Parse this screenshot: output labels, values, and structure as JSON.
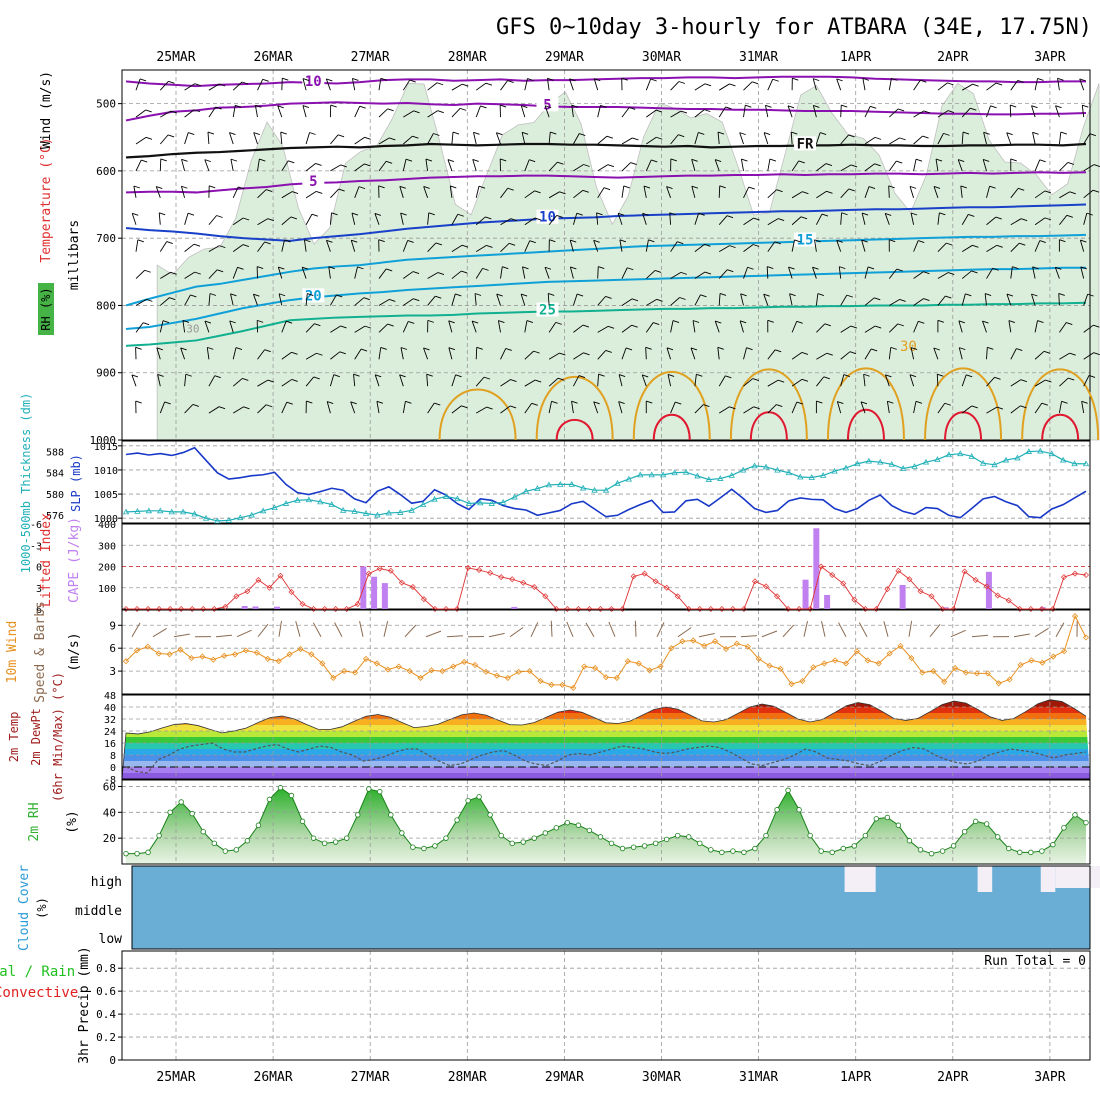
{
  "title": "GFS 0~10day 3-hourly for ATBARA (34E, 17.75N)",
  "dates": [
    "25MAR",
    "26MAR",
    "27MAR",
    "28MAR",
    "29MAR",
    "30MAR",
    "31MAR",
    "1APR",
    "2APR",
    "3APR"
  ],
  "colors": {
    "grid": "#9a9a9a",
    "contour_purple": "#8a10b0",
    "contour_blue": "#1840c8",
    "contour_lightblue": "#10a0d8",
    "contour_teal": "#10b090",
    "contour_orange": "#e0a020",
    "contour_red": "#e01830",
    "rh_fill": "#d8ecd8",
    "slp_line": "#1838c8",
    "thickness_line": "#20b0b8",
    "lifted_index": "#e03030",
    "cape_bar": "#c080f0",
    "wind_speed": "#e89020",
    "wind_barb": "#8a6a50",
    "rh_green": "#30b030",
    "cloud_blue": "#6aaed6",
    "precip_green": "#20c020",
    "precip_red": "#e02020"
  },
  "chart_data": [
    {
      "panel": "upper_air",
      "type": "contour",
      "ylabel_parts": [
        "RH (%)",
        "Temperature (°C)",
        "Wind (m/s)"
      ],
      "ylabel_units": "millibars",
      "yticks": [
        "500",
        "600",
        "700",
        "800",
        "900",
        "1000"
      ],
      "ylim": [
        1000,
        450
      ],
      "temperature_contours": [
        {
          "value": 10,
          "label": "10",
          "color": "#8a10b0",
          "p": [
            467,
            470,
            472,
            474,
            472,
            471,
            470,
            468,
            469,
            470,
            468,
            465,
            464,
            464,
            466,
            465,
            464,
            466,
            465,
            465,
            464,
            463,
            462,
            462,
            461,
            461,
            462,
            461,
            460,
            460,
            460,
            461,
            463,
            464,
            465,
            466,
            467,
            467,
            468,
            468,
            467,
            467
          ]
        },
        {
          "value": 5,
          "label": "5",
          "color": "#8a10b0",
          "p": [
            525,
            518,
            512,
            510,
            506,
            505,
            503,
            500,
            499,
            498,
            499,
            500,
            499,
            501,
            502,
            500,
            501,
            502,
            504,
            505,
            505,
            505,
            506,
            507,
            508,
            508,
            509,
            509,
            510,
            511,
            511,
            511,
            512,
            513,
            514,
            515,
            515,
            516,
            516,
            515,
            515,
            514
          ]
        },
        {
          "value": 0,
          "label": "FR",
          "color": "#111111",
          "p": [
            580,
            578,
            575,
            573,
            572,
            570,
            568,
            566,
            565,
            564,
            565,
            563,
            562,
            560,
            561,
            562,
            561,
            560,
            560,
            561,
            561,
            562,
            563,
            564,
            563,
            565,
            564,
            563,
            563,
            562,
            562,
            561,
            562,
            562,
            563,
            563,
            562,
            562,
            561,
            561,
            562,
            560
          ]
        },
        {
          "value": 5,
          "label": "5",
          "color": "#8a10b0",
          "p": [
            632,
            631,
            631,
            632,
            629,
            626,
            624,
            620,
            618,
            617,
            615,
            614,
            612,
            610,
            609,
            608,
            608,
            607,
            607,
            608,
            609,
            610,
            609,
            608,
            607,
            607,
            606,
            606,
            605,
            606,
            605,
            605,
            604,
            604,
            605,
            604,
            603,
            604,
            603,
            602,
            603,
            602
          ]
        },
        {
          "value": 10,
          "label": "10",
          "color": "#1840c8",
          "p": [
            685,
            688,
            690,
            693,
            697,
            700,
            702,
            704,
            700,
            697,
            694,
            690,
            686,
            683,
            680,
            677,
            675,
            673,
            671,
            670,
            669,
            667,
            666,
            665,
            664,
            663,
            662,
            661,
            660,
            660,
            659,
            658,
            657,
            657,
            656,
            655,
            654,
            654,
            653,
            652,
            651,
            650
          ]
        },
        {
          "value": 15,
          "label": "15",
          "color": "#10a0d8",
          "p": [
            800,
            790,
            781,
            772,
            768,
            762,
            756,
            750,
            745,
            742,
            740,
            736,
            732,
            730,
            728,
            726,
            724,
            722,
            720,
            718,
            716,
            714,
            712,
            711,
            710,
            709,
            708,
            707,
            706,
            705,
            704,
            703,
            702,
            701,
            700,
            699,
            698,
            698,
            697,
            697,
            696,
            695
          ]
        },
        {
          "value": 20,
          "label": "20",
          "color": "#10a0d8",
          "p": [
            835,
            832,
            826,
            820,
            812,
            804,
            798,
            792,
            788,
            785,
            782,
            780,
            777,
            775,
            773,
            771,
            769,
            767,
            765,
            764,
            763,
            762,
            761,
            760,
            759,
            758,
            757,
            756,
            755,
            754,
            753,
            752,
            751,
            750,
            749,
            748,
            747,
            746,
            746,
            745,
            744,
            744
          ]
        },
        {
          "value": 25,
          "label": "25",
          "color": "#10b090",
          "p": [
            860,
            858,
            855,
            852,
            845,
            838,
            830,
            822,
            820,
            818,
            817,
            816,
            815,
            815,
            814,
            812,
            811,
            810,
            809,
            809,
            808,
            807,
            806,
            805,
            805,
            804,
            804,
            803,
            802,
            802,
            801,
            801,
            800,
            800,
            800,
            799,
            799,
            798,
            798,
            797,
            797,
            796
          ]
        }
      ],
      "diurnal_contours": [
        {
          "value": 30,
          "label": "30",
          "color": "#e0a020",
          "peaks_day": [
            3.6,
            4.6,
            5.6,
            6.6,
            7.6,
            8.6,
            9.6
          ],
          "top_hPa": [
            900,
            875,
            865,
            860,
            858,
            858,
            860
          ]
        },
        {
          "value": 35,
          "label": "",
          "color": "#e01830",
          "peaks_day": [
            4.6,
            5.6,
            6.6,
            7.6,
            8.6,
            9.6
          ],
          "top_hPa": [
            960,
            950,
            945,
            940,
            945,
            950
          ]
        }
      ],
      "rh_contour_label": "30",
      "rh_moist_band": {
        "from_day": 0.3,
        "to_day": 10.0,
        "top_hPa": 560,
        "bottom_hPa": 1000
      }
    },
    {
      "panel": "slp_thickness",
      "type": "line",
      "ylabel_left": "1000-500mb Thickness (dm)",
      "ylabel_right": "SLP (mb)",
      "thickness_ticks": [
        "576",
        "580",
        "584",
        "588"
      ],
      "slp_ticks": [
        "1000",
        "1005",
        "1010",
        "1015"
      ],
      "slp_ylim": [
        999,
        1016
      ],
      "slp": [
        1013.2,
        1013.5,
        1013.1,
        1013.4,
        1013.0,
        1013.6,
        1014.6,
        1012.0,
        1009.4,
        1008.1,
        1008.4,
        1008.8,
        1009.0,
        1009.5,
        1007.0,
        1005.3,
        1004.9,
        1005.5,
        1006.2,
        1005.8,
        1004.0,
        1003.2,
        1005.6,
        1006.5,
        1004.9,
        1003.1,
        1003.5,
        1005.9,
        1004.8,
        1003.0,
        1001.8,
        1004.0,
        1003.7,
        1002.6,
        1002.0,
        1001.7,
        1000.6,
        1001.1,
        1001.6,
        1003.0,
        1003.5,
        1001.9,
        1000.3,
        1000.6,
        1001.8,
        1002.8,
        1003.7,
        1001.2,
        1001.3,
        1003.6,
        1003.9,
        1002.5,
        1004.2,
        1006.0,
        1004.1,
        1002.0,
        1001.2,
        1001.6,
        1003.6,
        1004.2,
        1003.9,
        1003.8,
        1002.0,
        1001.2,
        1002.0,
        1003.7,
        1004.8,
        1002.6,
        1001.4,
        1000.8,
        1002.2,
        1002.0,
        1000.6,
        1000.1,
        1002.0,
        1004.0,
        1004.5,
        1003.4,
        1002.6,
        1000.3,
        1000.1,
        1001.9,
        1002.8,
        1004.2,
        1005.6
      ],
      "thickness_ylim": [
        574.5,
        590.0
      ],
      "thickness": [
        576.6,
        576.7,
        576.8,
        576.8,
        576.6,
        576.6,
        576.2,
        575.4,
        574.9,
        575.0,
        575.5,
        576.0,
        576.8,
        577.4,
        578.2,
        578.8,
        578.9,
        578.5,
        578.0,
        576.9,
        576.7,
        576.3,
        576.0,
        576.4,
        576.5,
        576.9,
        578.0,
        579.0,
        579.5,
        579.1,
        578.2,
        578.3,
        578.2,
        578.4,
        579.4,
        580.5,
        581.0,
        581.7,
        581.8,
        581.8,
        581.1,
        580.7,
        580.7,
        582.0,
        582.8,
        583.6,
        583.6,
        583.6,
        584.0,
        584.1,
        583.4,
        582.7,
        582.9,
        583.5,
        584.5,
        585.3,
        585.1,
        584.5,
        584.0,
        583.2,
        583.1,
        583.5,
        584.3,
        584.9,
        585.7,
        586.2,
        586.0,
        585.6,
        584.8,
        585.2,
        586.0,
        586.5,
        587.4,
        587.6,
        587.1,
        585.8,
        585.5,
        586.4,
        586.8,
        588.0,
        588.1,
        587.6,
        586.4,
        585.7,
        585.7
      ]
    },
    {
      "panel": "stability",
      "type": "bar",
      "ylabel_left": "Lifted Index",
      "ylabel_right": "CAPE (J/kg)",
      "li_ticks": [
        "-6",
        "-3",
        "0",
        "3",
        "6"
      ],
      "cape_ticks": [
        "100",
        "200",
        "300",
        "400"
      ],
      "cape_ylim": [
        0,
        400
      ],
      "li_ylim": [
        6,
        -6
      ],
      "cape_values": [
        0,
        0,
        0,
        0,
        0,
        0,
        0,
        0,
        0,
        0,
        0,
        14,
        12,
        0,
        11,
        0,
        0,
        0,
        0,
        0,
        0,
        0,
        200,
        152,
        122,
        0,
        0,
        0,
        0,
        0,
        0,
        0,
        0,
        0,
        0,
        0,
        10,
        0,
        0,
        0,
        0,
        0,
        0,
        0,
        0,
        4,
        0,
        0,
        0,
        0,
        0,
        0,
        0,
        0,
        0,
        0,
        0,
        0,
        0,
        0,
        0,
        0,
        0,
        138,
        380,
        66,
        0,
        0,
        0,
        0,
        0,
        0,
        113,
        0,
        0,
        0,
        8,
        0,
        0,
        0,
        175,
        0,
        0,
        0,
        0,
        8,
        0,
        0,
        0,
        0
      ],
      "li_values": [
        6,
        6,
        6,
        6,
        6,
        6,
        6,
        6,
        6,
        5.7,
        4.2,
        3.5,
        1.9,
        3.0,
        1.3,
        3.6,
        5.3,
        6,
        6,
        6,
        6,
        5.3,
        1.0,
        0.3,
        0.6,
        2.3,
        2.9,
        4.6,
        6,
        6,
        6,
        0.2,
        0.5,
        0.9,
        1.5,
        1.8,
        2.3,
        2.9,
        4.2,
        6,
        6,
        6,
        6,
        6,
        6,
        6,
        1.4,
        1.0,
        2.1,
        3.0,
        4.2,
        6,
        6,
        6,
        6,
        6,
        6,
        2.1,
        2.8,
        4.2,
        6,
        6,
        6,
        0,
        1.2,
        2.4,
        4.7,
        6,
        6,
        3.2,
        0.6,
        1.8,
        3.5,
        4.2,
        6,
        6,
        0.7,
        1.9,
        2.8,
        4.1,
        4.8,
        6,
        6,
        6,
        6,
        1.5,
        1.0,
        1.2
      ]
    },
    {
      "panel": "wind10m",
      "type": "line",
      "ylabel_left": "10m Wind",
      "ylabel_mid": "Speed & Barbs",
      "ylabel_units": "(m/s)",
      "yticks": [
        "3",
        "6",
        "9"
      ],
      "ylim": [
        0,
        11
      ],
      "speed": [
        4.3,
        5.7,
        6.2,
        5.3,
        5.2,
        5.8,
        4.7,
        4.9,
        4.5,
        5.0,
        5.2,
        5.7,
        5.4,
        4.6,
        4.3,
        5.2,
        5.9,
        5.2,
        4.0,
        2.1,
        3.0,
        2.8,
        4.6,
        4.0,
        3.2,
        3.6,
        3.0,
        2.1,
        3.1,
        3.0,
        3.6,
        4.2,
        3.8,
        2.9,
        2.4,
        2.1,
        2.9,
        3.0,
        1.7,
        1.2,
        1.2,
        0.8,
        3.6,
        3.4,
        2.2,
        2.1,
        4.3,
        4.0,
        3.1,
        3.6,
        6.0,
        6.9,
        7.0,
        6.3,
        6.9,
        5.9,
        6.6,
        6.2,
        4.6,
        3.7,
        3.3,
        1.3,
        1.7,
        3.5,
        4.0,
        4.4,
        4.0,
        5.6,
        4.4,
        4.0,
        5.3,
        6.3,
        4.7,
        2.8,
        3.0,
        1.6,
        3.4,
        2.8,
        2.7,
        2.7,
        1.4,
        1.9,
        3.8,
        4.4,
        4.1,
        4.9,
        5.6,
        10.2,
        7.4
      ]
    },
    {
      "panel": "temperature2m",
      "type": "area",
      "ylabel": [
        "2m Temp",
        "2m DewPt",
        "(6hr Min/Max) (°C)"
      ],
      "yticks": [
        "-8",
        "0",
        "8",
        "16",
        "24",
        "32",
        "40",
        "48"
      ],
      "ylim": [
        -8,
        48
      ],
      "temp_peaks": [
        29,
        34,
        35,
        36,
        38,
        40,
        42,
        43,
        44,
        45
      ],
      "temp_troughs": [
        22,
        24,
        25,
        27,
        28,
        29,
        30,
        30,
        31,
        31
      ],
      "dewpoint": [
        0,
        -3,
        -4,
        5,
        8,
        12,
        14,
        15,
        16,
        12,
        10,
        10,
        12,
        14,
        15,
        12,
        10,
        12,
        14,
        13,
        10,
        8,
        4,
        5,
        7,
        10,
        12,
        12,
        8,
        4,
        1,
        2,
        5,
        8,
        10,
        11,
        8,
        4,
        2,
        1,
        4,
        8,
        9,
        8,
        10,
        12,
        14,
        13,
        12,
        10,
        9,
        10,
        12,
        13,
        14,
        13,
        10,
        6,
        2,
        1,
        3,
        5,
        8,
        12,
        10,
        6,
        5,
        4,
        2,
        1,
        4,
        8,
        11,
        13,
        12,
        8,
        5,
        3,
        2,
        4,
        8,
        10,
        12,
        11,
        10,
        8,
        6,
        8,
        9,
        10
      ]
    },
    {
      "panel": "rh2m",
      "type": "area",
      "ylabel": "2m RH",
      "ylabel_units": "(%)",
      "yticks": [
        "20",
        "40",
        "60"
      ],
      "ylim": [
        0,
        65
      ],
      "values": [
        8,
        8,
        9,
        22,
        40,
        48,
        39,
        25,
        16,
        10,
        11,
        18,
        30,
        50,
        59,
        53,
        33,
        20,
        16,
        17,
        20,
        38,
        58,
        56,
        38,
        24,
        13,
        12,
        14,
        20,
        34,
        49,
        52,
        38,
        22,
        16,
        17,
        20,
        24,
        28,
        32,
        30,
        26,
        21,
        16,
        12,
        13,
        14,
        16,
        19,
        22,
        21,
        16,
        11,
        9,
        10,
        9,
        12,
        22,
        42,
        57,
        42,
        22,
        10,
        9,
        12,
        14,
        22,
        35,
        36,
        30,
        18,
        11,
        8,
        10,
        14,
        25,
        33,
        31,
        21,
        12,
        9,
        9,
        10,
        15,
        28,
        38,
        32
      ]
    },
    {
      "panel": "cloud_cover",
      "type": "heatmap",
      "ylabel": "Cloud Cover",
      "ylabel_units": "(%)",
      "levels": [
        "high",
        "middle",
        "low"
      ],
      "high_cover_gaps": [
        {
          "from_day": 7.38,
          "to_day": 7.7
        },
        {
          "from_day": 8.75,
          "to_day": 8.9
        },
        {
          "from_day": 9.4,
          "to_day": 9.55
        },
        {
          "from_day": 9.55,
          "to_day": 10.1
        }
      ]
    },
    {
      "panel": "precip",
      "type": "bar",
      "ylabel_left": "Total / Rain",
      "ylabel_left2": "Convective",
      "ylabel_units": "3hr Precip (mm)",
      "yticks": [
        "0",
        "0.2",
        "0.4",
        "0.6",
        "0.8"
      ],
      "ylim": [
        0,
        0.95
      ],
      "run_total_label": "Run Total = 0",
      "values": []
    }
  ]
}
